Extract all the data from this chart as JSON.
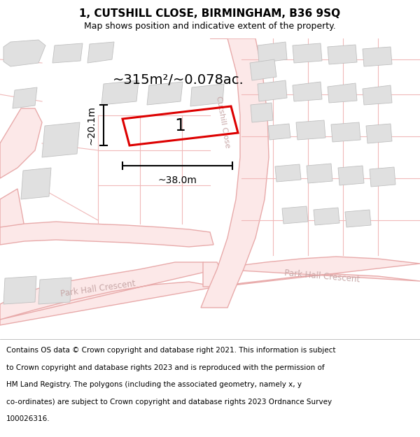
{
  "title_line1": "1, CUTSHILL CLOSE, BIRMINGHAM, B36 9SQ",
  "title_line2": "Map shows position and indicative extent of the property.",
  "area_label": "~315m²/~0.078ac.",
  "plot_number": "1",
  "width_label": "~38.0m",
  "height_label": "~20.1m",
  "road_fill": "#fce8e8",
  "road_edge": "#e8aaaa",
  "road_line": "#f0b8b8",
  "building_fill": "#e0e0e0",
  "building_edge": "#c0c0c0",
  "plot_edge": "#dd0000",
  "street_label_color": "#c8a8a8",
  "title_fontsize": 11,
  "subtitle_fontsize": 9,
  "footer_fontsize": 7.5,
  "footer_lines": [
    "Contains OS data © Crown copyright and database right 2021. This information is subject",
    "to Crown copyright and database rights 2023 and is reproduced with the permission of",
    "HM Land Registry. The polygons (including the associated geometry, namely x, y",
    "co-ordinates) are subject to Crown copyright and database rights 2023 Ordnance Survey",
    "100026316."
  ]
}
